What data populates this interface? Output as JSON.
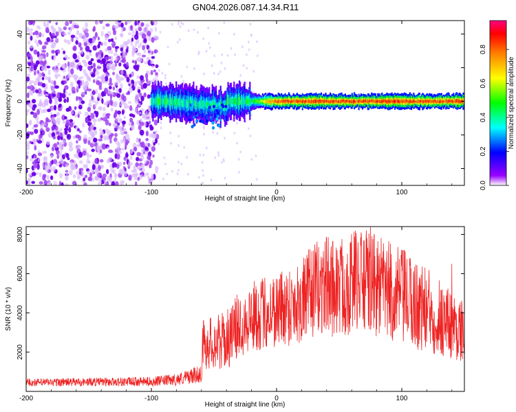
{
  "figure": {
    "title": "GN04.2026.087.14.34.R11"
  },
  "chart_data": [
    {
      "type": "heatmap",
      "title": "GN04.2026.087.14.34.R11",
      "xlabel": "Height of straight line (km)",
      "ylabel": "Frequency (Hz)",
      "xlim": [
        -200,
        150
      ],
      "ylim": [
        -50,
        48
      ],
      "xticks": [
        -200,
        -100,
        0,
        100
      ],
      "xtick_labels": [
        "-200",
        "-100",
        "0",
        "100"
      ],
      "yticks": [
        -40,
        -20,
        0,
        20,
        40
      ],
      "ytick_labels": [
        "-40",
        "-20",
        "0",
        "20",
        "40"
      ],
      "colorbar": {
        "label": "Normalized spectral amplitude",
        "range": [
          0.0,
          0.97
        ],
        "ticks": [
          0.0,
          0.2,
          0.4,
          0.6,
          0.8
        ],
        "tick_labels": [
          "0.0",
          "0.2",
          "0.4",
          "0.6",
          "0.8"
        ],
        "colors": [
          "#ffffff",
          "#9900ff",
          "#0000ff",
          "#00ffff",
          "#00ff00",
          "#ffff00",
          "#ff8000",
          "#ff0000",
          "#ff0080"
        ]
      },
      "features": {
        "noise_region_x": [
          -200,
          -95
        ],
        "ridge_frequency_hz": 0,
        "ridge_start_x": -100,
        "strong_ridge_x": [
          -20,
          150
        ]
      }
    },
    {
      "type": "line",
      "xlabel": "Height of straight line (km)",
      "ylabel": "SNR (10 * v/v)",
      "xlim": [
        -200,
        150
      ],
      "ylim": [
        0,
        8400
      ],
      "xticks": [
        -200,
        -100,
        0,
        100
      ],
      "xtick_labels": [
        "-200",
        "-100",
        "0",
        "100"
      ],
      "yticks": [
        2000,
        4000,
        6000,
        8000
      ],
      "ytick_labels": [
        "2000",
        "4000",
        "6000",
        "8000"
      ],
      "line_color": "#ee2222",
      "series": [
        {
          "name": "SNR",
          "envelope_x": [
            -200,
            -150,
            -100,
            -80,
            -60,
            -59,
            -40,
            -30,
            -20,
            0,
            20,
            30,
            40,
            50,
            63,
            75,
            100,
            130,
            150
          ],
          "envelope_y": [
            450,
            480,
            500,
            600,
            900,
            2400,
            2600,
            3400,
            3800,
            4200,
            4600,
            5200,
            5400,
            5300,
            5600,
            5500,
            4800,
            3800,
            3000
          ],
          "spread": [
            200,
            220,
            240,
            300,
            450,
            1300,
            1500,
            1700,
            1800,
            2000,
            2200,
            2400,
            2600,
            2600,
            2700,
            2700,
            2500,
            2100,
            1500
          ],
          "peaks": [
            {
              "x": 40,
              "y": 7800
            },
            {
              "x": 63,
              "y": 8200
            },
            {
              "x": 75,
              "y": 8400
            },
            {
              "x": 100,
              "y": 7200
            },
            {
              "x": 140,
              "y": 6500
            }
          ]
        }
      ]
    }
  ]
}
